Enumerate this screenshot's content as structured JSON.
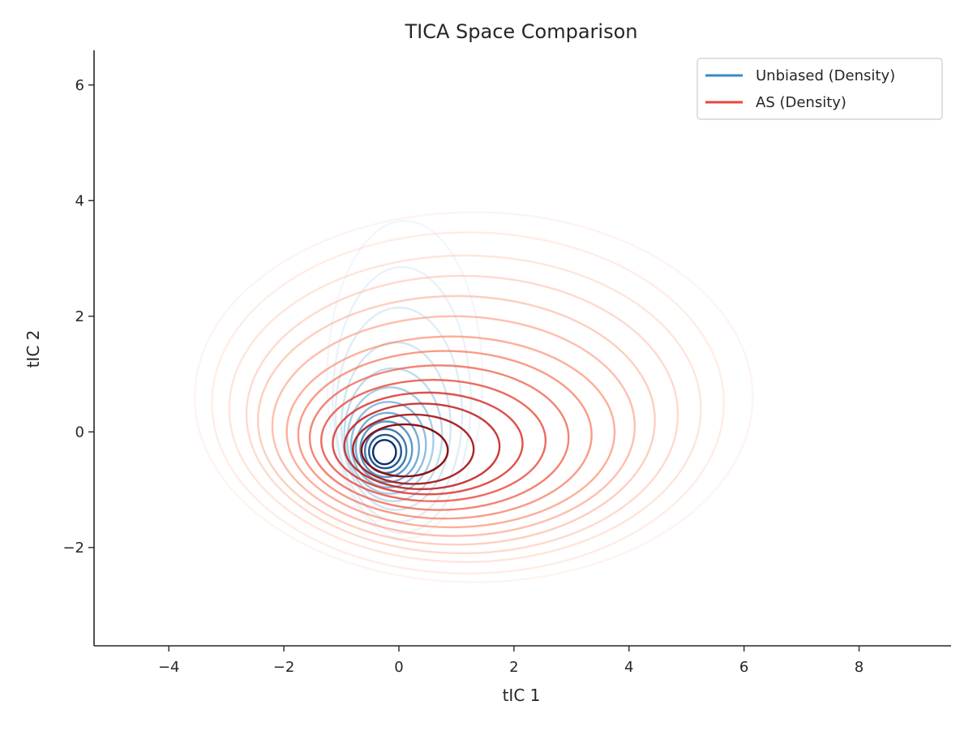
{
  "chart_data": {
    "type": "contour",
    "title": "TICA Space Comparison",
    "xlabel": "tIC 1",
    "ylabel": "tIC 2",
    "xlim": [
      -5.3,
      9.6
    ],
    "ylim": [
      -3.7,
      6.6
    ],
    "x_ticks": [
      -4,
      -2,
      0,
      2,
      4,
      6,
      8
    ],
    "x_tick_labels": [
      "−4",
      "−2",
      "0",
      "2",
      "4",
      "6",
      "8"
    ],
    "y_ticks": [
      -2,
      0,
      2,
      4,
      6
    ],
    "y_tick_labels": [
      "−2",
      "0",
      "2",
      "4",
      "6"
    ],
    "grid": false,
    "legend_position": "top-right",
    "series": [
      {
        "name": "Unbiased (Density)",
        "color": "#3a8ac4",
        "colormap": "Blues",
        "peak": [
          -0.25,
          -0.35
        ],
        "levels": [
          {
            "cx": 0.1,
            "cy": 0.9,
            "rx": 1.35,
            "ry": 2.75
          },
          {
            "cx": 0.05,
            "cy": 0.55,
            "rx": 1.2,
            "ry": 2.3
          },
          {
            "cx": 0.0,
            "cy": 0.3,
            "rx": 1.1,
            "ry": 1.85
          },
          {
            "cx": -0.05,
            "cy": 0.1,
            "rx": 0.95,
            "ry": 1.45
          },
          {
            "cx": -0.1,
            "cy": -0.05,
            "rx": 0.85,
            "ry": 1.15
          },
          {
            "cx": -0.15,
            "cy": -0.15,
            "rx": 0.75,
            "ry": 0.92
          },
          {
            "cx": -0.18,
            "cy": -0.22,
            "rx": 0.65,
            "ry": 0.74
          },
          {
            "cx": -0.2,
            "cy": -0.27,
            "rx": 0.55,
            "ry": 0.6
          },
          {
            "cx": -0.22,
            "cy": -0.3,
            "rx": 0.45,
            "ry": 0.48
          },
          {
            "cx": -0.23,
            "cy": -0.33,
            "rx": 0.36,
            "ry": 0.38
          },
          {
            "cx": -0.24,
            "cy": -0.34,
            "rx": 0.28,
            "ry": 0.29
          },
          {
            "cx": -0.25,
            "cy": -0.35,
            "rx": 0.2,
            "ry": 0.21
          }
        ]
      },
      {
        "name": "AS (Density)",
        "color": "#e8463a",
        "colormap": "Reds",
        "peak": [
          -0.25,
          -0.35
        ],
        "levels": [
          {
            "cx": 1.3,
            "cy": 0.6,
            "rx": 4.85,
            "ry": 3.2
          },
          {
            "cx": 1.2,
            "cy": 0.5,
            "rx": 4.45,
            "ry": 2.95
          },
          {
            "cx": 1.15,
            "cy": 0.4,
            "rx": 4.1,
            "ry": 2.65
          },
          {
            "cx": 1.1,
            "cy": 0.3,
            "rx": 3.75,
            "ry": 2.4
          },
          {
            "cx": 1.0,
            "cy": 0.2,
            "rx": 3.45,
            "ry": 2.15
          },
          {
            "cx": 0.95,
            "cy": 0.1,
            "rx": 3.15,
            "ry": 1.9
          },
          {
            "cx": 0.9,
            "cy": 0.0,
            "rx": 2.85,
            "ry": 1.65
          },
          {
            "cx": 0.8,
            "cy": -0.05,
            "rx": 2.55,
            "ry": 1.45
          },
          {
            "cx": 0.7,
            "cy": -0.1,
            "rx": 2.25,
            "ry": 1.25
          },
          {
            "cx": 0.6,
            "cy": -0.15,
            "rx": 1.95,
            "ry": 1.05
          },
          {
            "cx": 0.5,
            "cy": -0.2,
            "rx": 1.65,
            "ry": 0.88
          },
          {
            "cx": 0.4,
            "cy": -0.25,
            "rx": 1.35,
            "ry": 0.74
          },
          {
            "cx": 0.25,
            "cy": -0.3,
            "rx": 1.05,
            "ry": 0.6
          },
          {
            "cx": 0.1,
            "cy": -0.32,
            "rx": 0.75,
            "ry": 0.45
          }
        ]
      }
    ]
  }
}
